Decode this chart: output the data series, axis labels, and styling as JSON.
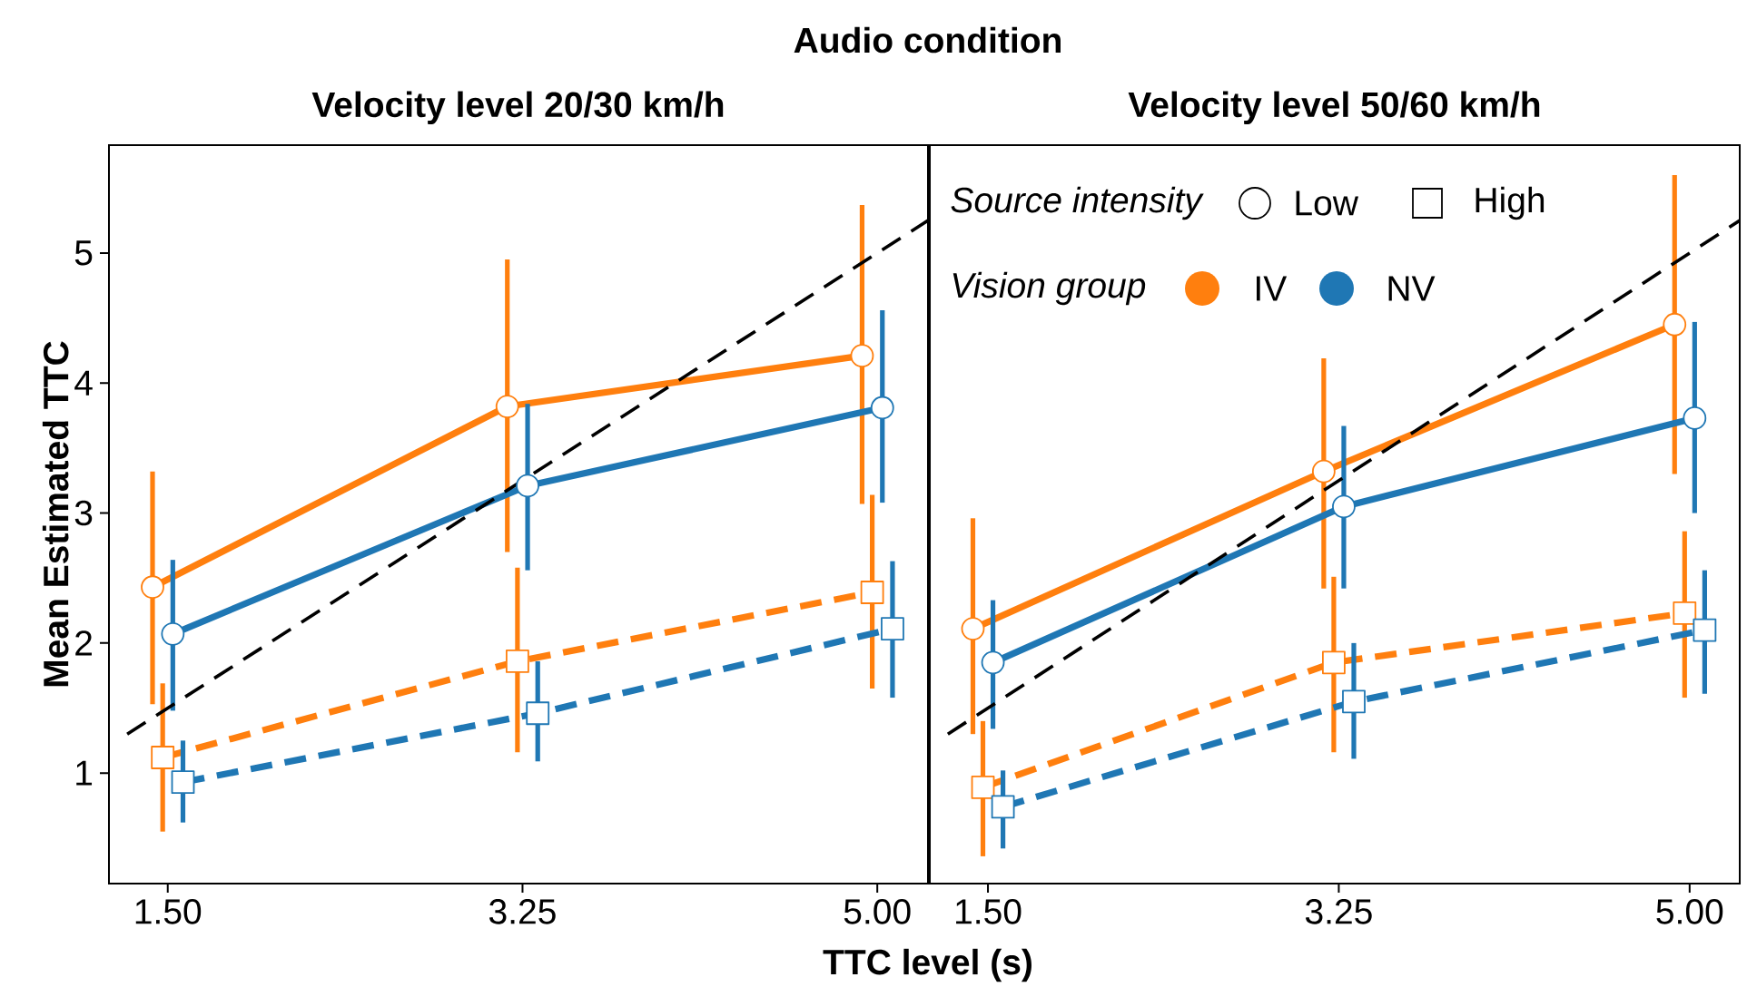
{
  "chart_data": [
    {
      "type": "line",
      "title": "Velocity level 20/30 km/h",
      "xlabel": "TTC level (s)",
      "ylabel": "Mean Estimated TTC",
      "annotations": [
        "Audio condition"
      ],
      "xlim": [
        1.21,
        5.25
      ],
      "ylim": [
        0.15,
        5.83
      ],
      "xticks": [
        {
          "value": 1.5,
          "label": "1.50"
        },
        {
          "value": 3.25,
          "label": "3.25"
        },
        {
          "value": 5,
          "label": "5.00"
        }
      ],
      "yticks": [
        1,
        2,
        3,
        4,
        5
      ],
      "grid": false,
      "series": [
        {
          "color": "#ff7f0e",
          "marker": "circle",
          "line_style": "solid",
          "x": [
            1.425,
            3.175,
            4.925
          ],
          "values": [
            2.43,
            3.82,
            4.21
          ],
          "errors": [
            [
              1.53,
              3.32
            ],
            [
              2.7,
              4.95
            ],
            [
              3.07,
              5.37
            ]
          ]
        },
        {
          "color": "#ff7f0e",
          "marker": "square",
          "line_style": "dashed",
          "x": [
            1.475,
            3.225,
            4.975
          ],
          "values": [
            1.12,
            1.86,
            2.39
          ],
          "errors": [
            [
              0.55,
              1.69
            ],
            [
              1.16,
              2.58
            ],
            [
              1.65,
              3.14
            ]
          ]
        },
        {
          "color": "#1f77b4",
          "marker": "circle",
          "line_style": "solid",
          "x": [
            1.525,
            3.275,
            5.025
          ],
          "values": [
            2.07,
            3.21,
            3.81
          ],
          "errors": [
            [
              1.48,
              2.64
            ],
            [
              2.56,
              3.84
            ],
            [
              3.08,
              4.56
            ]
          ]
        },
        {
          "color": "#1f77b4",
          "marker": "square",
          "line_style": "dashed",
          "x": [
            1.575,
            3.325,
            5.075
          ],
          "values": [
            0.93,
            1.46,
            2.11
          ],
          "errors": [
            [
              0.62,
              1.25
            ],
            [
              1.09,
              1.86
            ],
            [
              1.58,
              2.63
            ]
          ]
        },
        {
          "color": "#000000",
          "marker": "none",
          "line_style": "dashed",
          "x": [
            1.3,
            5.25
          ],
          "values": [
            1.3,
            5.25
          ]
        }
      ]
    },
    {
      "type": "line",
      "title": "Velocity level 50/60 km/h",
      "annotations": [
        "Source intensity",
        "Low",
        "High",
        "Vision group",
        "IV",
        "NV"
      ],
      "xlim": [
        1.21,
        5.25
      ],
      "ylim": [
        0.15,
        5.83
      ],
      "xticks": [
        {
          "value": 1.5,
          "label": "1.50"
        },
        {
          "value": 3.25,
          "label": "3.25"
        },
        {
          "value": 5,
          "label": "5.00"
        }
      ],
      "tick_labels": "x",
      "grid": false,
      "series": [
        {
          "color": "#ff7f0e",
          "marker": "circle",
          "line_style": "solid",
          "x": [
            1.425,
            3.175,
            4.925
          ],
          "values": [
            2.11,
            3.32,
            4.45
          ],
          "errors": [
            [
              1.3,
              2.96
            ],
            [
              2.42,
              4.19
            ],
            [
              3.3,
              5.6
            ]
          ]
        },
        {
          "color": "#ff7f0e",
          "marker": "square",
          "line_style": "dashed",
          "x": [
            1.475,
            3.225,
            4.975
          ],
          "values": [
            0.89,
            1.85,
            2.23
          ],
          "errors": [
            [
              0.36,
              1.4
            ],
            [
              1.16,
              2.51
            ],
            [
              1.58,
              2.86
            ]
          ]
        },
        {
          "color": "#1f77b4",
          "marker": "circle",
          "line_style": "solid",
          "x": [
            1.525,
            3.275,
            5.025
          ],
          "values": [
            1.85,
            3.05,
            3.73
          ],
          "errors": [
            [
              1.34,
              2.33
            ],
            [
              2.42,
              3.67
            ],
            [
              3.0,
              4.47
            ]
          ]
        },
        {
          "color": "#1f77b4",
          "marker": "square",
          "line_style": "dashed",
          "x": [
            1.575,
            3.325,
            5.075
          ],
          "values": [
            0.74,
            1.55,
            2.1
          ],
          "errors": [
            [
              0.42,
              1.02
            ],
            [
              1.11,
              2.0
            ],
            [
              1.61,
              2.56
            ]
          ]
        },
        {
          "color": "#000000",
          "marker": "none",
          "line_style": "dashed",
          "x": [
            1.3,
            5.25
          ],
          "values": [
            1.3,
            5.25
          ]
        }
      ]
    }
  ]
}
